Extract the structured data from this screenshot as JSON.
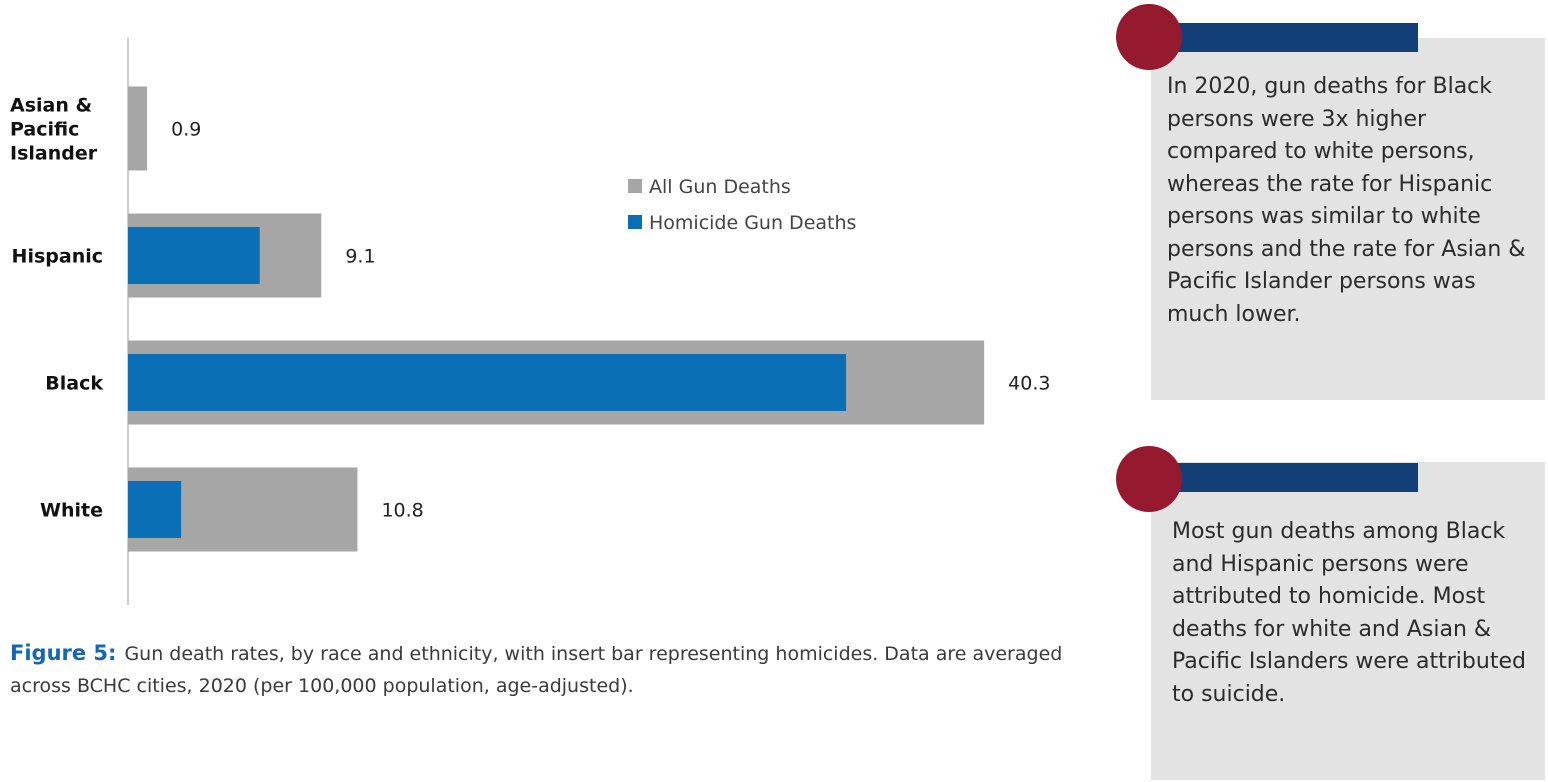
{
  "chart_data": {
    "type": "bar",
    "orientation": "horizontal",
    "categories": [
      "Asian & Pacific Islander",
      "Hispanic",
      "Black",
      "White"
    ],
    "category_label_lines": [
      [
        "Asian &",
        "Pacific",
        "Islander"
      ],
      [
        "Hispanic"
      ],
      [
        "Black"
      ],
      [
        "White"
      ]
    ],
    "series": [
      {
        "name": "All Gun Deaths",
        "values": [
          0.9,
          9.1,
          40.3,
          10.8
        ],
        "color": "#a6a6a6"
      },
      {
        "name": "Homicide Gun Deaths",
        "values": [
          null,
          6.2,
          33.8,
          2.5
        ],
        "color": "#0b6fb5"
      }
    ],
    "data_labels": [
      "0.9",
      "9.1",
      "40.3",
      "10.8"
    ],
    "xlim": [
      0,
      45
    ],
    "grid": false,
    "legend_position": "center-right",
    "title": "",
    "xlabel": "",
    "ylabel": ""
  },
  "caption": {
    "figure_label": "Figure 5:",
    "text": "Gun death rates, by race and ethnicity, with insert bar representing homicides. Data are averaged across BCHC cities, 2020 (per 100,000 population, age-adjusted)."
  },
  "callouts": [
    {
      "text": "In 2020, gun deaths for Black persons were 3x higher compared to white persons, whereas the rate for Hispanic persons was similar to white persons and the rate for Asian & Pacific Islander persons was much lower."
    },
    {
      "text": "Most gun deaths among Black and Hispanic persons were attributed to homicide. Most deaths for white and Asian & Pacific Islanders were attributed to suicide."
    }
  ],
  "colors": {
    "all_gun_deaths": "#a6a6a6",
    "homicide_gun_deaths": "#0b6fb5",
    "callout_accent_bar": "#133f79",
    "callout_accent_dot": "#95192f",
    "callout_background": "#e3e3e3",
    "figure_label": "#1765b5"
  }
}
